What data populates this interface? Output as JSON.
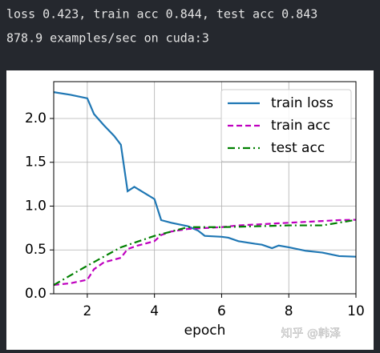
{
  "console": {
    "lines": [
      "loss 0.423, train acc 0.844, test acc 0.843",
      "878.9 examples/sec on cuda:3"
    ]
  },
  "watermark": "知乎 @韩泽",
  "chart_data": {
    "type": "line",
    "xlabel": "epoch",
    "xlim": [
      1,
      10
    ],
    "xticks": [
      2,
      4,
      6,
      8,
      10
    ],
    "ylim": [
      0,
      2.42
    ],
    "yticks": [
      {
        "value": 0,
        "label": "0.0"
      },
      {
        "value": 0.5,
        "label": "0.5"
      },
      {
        "value": 1,
        "label": "1.0"
      },
      {
        "value": 1.5,
        "label": "1.5"
      },
      {
        "value": 2,
        "label": "2.0"
      }
    ],
    "grid": true,
    "legend": "upper right",
    "series": [
      {
        "name": "train loss",
        "color": "#1f77b4",
        "linestyle": "-",
        "x": [
          1,
          1.5,
          2,
          2.2,
          2.5,
          2.8,
          3,
          3.2,
          3.4,
          3.7,
          4,
          4.2,
          4.5,
          5,
          5.3,
          5.5,
          6,
          6.2,
          6.5,
          7,
          7.2,
          7.5,
          7.7,
          8,
          8.5,
          9,
          9.5,
          10
        ],
        "values": [
          2.3,
          2.27,
          2.23,
          2.05,
          1.92,
          1.8,
          1.7,
          1.17,
          1.22,
          1.15,
          1.08,
          0.84,
          0.81,
          0.77,
          0.72,
          0.66,
          0.65,
          0.64,
          0.6,
          0.57,
          0.56,
          0.52,
          0.55,
          0.53,
          0.49,
          0.47,
          0.43,
          0.423
        ]
      },
      {
        "name": "train acc",
        "color": "#bf00bf",
        "linestyle": "--",
        "x": [
          1,
          1.5,
          2,
          2.2,
          2.5,
          3,
          3.2,
          3.5,
          4,
          4.2,
          4.5,
          5,
          5.5,
          6,
          6.5,
          7,
          7.5,
          8,
          8.5,
          9,
          9.5,
          10
        ],
        "values": [
          0.1,
          0.12,
          0.16,
          0.28,
          0.36,
          0.41,
          0.51,
          0.55,
          0.6,
          0.67,
          0.71,
          0.74,
          0.75,
          0.76,
          0.78,
          0.79,
          0.8,
          0.81,
          0.82,
          0.83,
          0.84,
          0.844
        ]
      },
      {
        "name": "test acc",
        "color": "#008000",
        "linestyle": "-.",
        "x": [
          1,
          2,
          3,
          4,
          5,
          6,
          7,
          8,
          9,
          10
        ],
        "values": [
          0.1,
          0.32,
          0.53,
          0.66,
          0.76,
          0.76,
          0.77,
          0.78,
          0.78,
          0.843
        ]
      }
    ]
  }
}
